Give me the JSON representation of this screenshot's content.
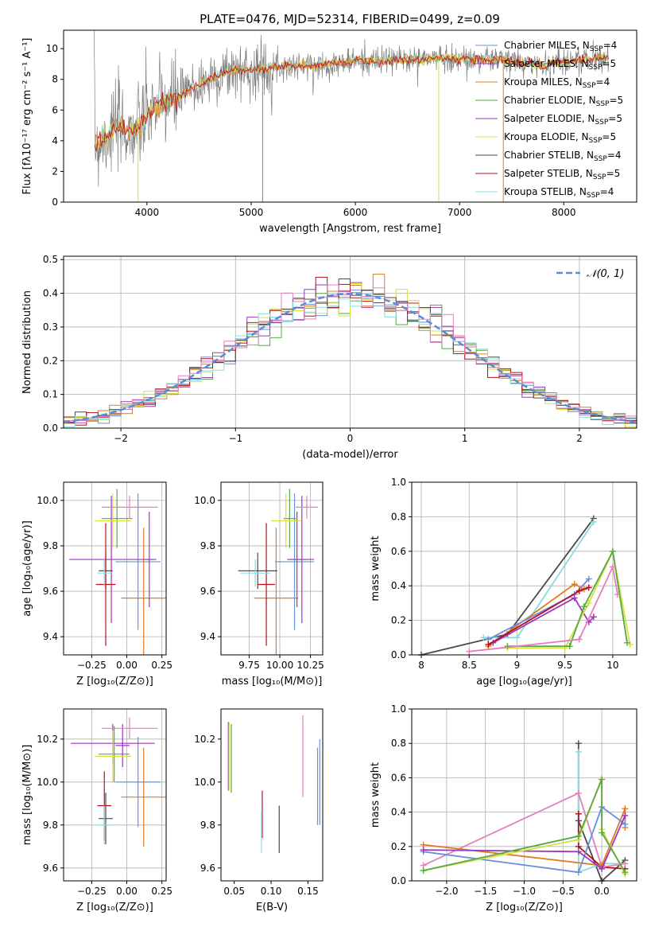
{
  "figure": {
    "title": "PLATE=0476, MJD=52314, FIBERID=0499, z=0.09"
  },
  "colors": {
    "Chabrier MILES": "#6a8fdb",
    "Salpeter MILES": "#9b37b9",
    "Kroupa MILES": "#e07b22",
    "Chabrier ELODIE": "#56a846",
    "Salpeter ELODIE": "#9b37b9",
    "Kroupa ELODIE": "#d8df3c",
    "Chabrier STELIB": "#4a4a4a",
    "Salpeter STELIB": "#b4101e",
    "Kroupa STELIB": "#86dde0",
    "data": "#808080",
    "normal": "#5b8bd8",
    "pink": "#e57fbc"
  },
  "chart_data": [
    {
      "type": "line",
      "name": "spectrum",
      "xlabel": "wavelength [Angstrom, rest frame]",
      "ylabel": "Flux [fλ10⁻¹⁷ erg cm⁻² s⁻¹ A⁻¹]",
      "xlim": [
        3200,
        8700
      ],
      "ylim": [
        0,
        11.2
      ],
      "xticks": [
        4000,
        5000,
        6000,
        7000,
        8000
      ],
      "yticks": [
        0,
        2,
        4,
        6,
        8,
        10
      ],
      "grid": false,
      "legend_position": "upper-right",
      "legend": [
        {
          "label": "Chabrier MILES, N",
          "sub": "SSP",
          "tail": "=4",
          "color": "#6a8fdb"
        },
        {
          "label": "Salpeter MILES, N",
          "sub": "SSP",
          "tail": "=5",
          "color": "#9b37b9"
        },
        {
          "label": "Kroupa MILES, N",
          "sub": "SSP",
          "tail": "=4",
          "color": "#e07b22"
        },
        {
          "label": "Chabrier ELODIE, N",
          "sub": "SSP",
          "tail": "=5",
          "color": "#56a846"
        },
        {
          "label": "Salpeter ELODIE, N",
          "sub": "SSP",
          "tail": "=5",
          "color": "#9b37b9"
        },
        {
          "label": "Kroupa ELODIE, N",
          "sub": "SSP",
          "tail": "=5",
          "color": "#d8df3c"
        },
        {
          "label": "Chabrier STELIB, N",
          "sub": "SSP",
          "tail": "=4",
          "color": "#4a4a4a"
        },
        {
          "label": "Salpeter STELIB, N",
          "sub": "SSP",
          "tail": "=5",
          "color": "#b4101e"
        },
        {
          "label": "Kroupa STELIB, N",
          "sub": "SSP",
          "tail": "=4",
          "color": "#86dde0"
        }
      ],
      "continuum": [
        [
          3500,
          3.7
        ],
        [
          3600,
          4.2
        ],
        [
          3700,
          4.9
        ],
        [
          3800,
          4.7
        ],
        [
          3900,
          4.6
        ],
        [
          4000,
          5.6
        ],
        [
          4100,
          6.3
        ],
        [
          4200,
          6.6
        ],
        [
          4300,
          6.8
        ],
        [
          4400,
          7.3
        ],
        [
          4500,
          7.6
        ],
        [
          4600,
          8.0
        ],
        [
          4700,
          8.3
        ],
        [
          4800,
          8.5
        ],
        [
          4900,
          8.6
        ],
        [
          5000,
          8.6
        ],
        [
          5200,
          8.8
        ],
        [
          5400,
          8.9
        ],
        [
          5600,
          8.9
        ],
        [
          5800,
          9.0
        ],
        [
          6000,
          9.2
        ],
        [
          6200,
          9.2
        ],
        [
          6400,
          9.3
        ],
        [
          6600,
          9.3
        ],
        [
          6800,
          9.4
        ],
        [
          7000,
          9.3
        ],
        [
          7200,
          9.3
        ],
        [
          7400,
          9.3
        ],
        [
          7600,
          9.1
        ],
        [
          7800,
          8.9
        ],
        [
          8000,
          9.2
        ],
        [
          8200,
          9.3
        ],
        [
          8400,
          9.4
        ]
      ]
    },
    {
      "type": "line",
      "name": "residual-histogram",
      "xlabel": "(data-model)/error",
      "ylabel": "Normed distribution",
      "xlim": [
        -2.5,
        2.5
      ],
      "ylim": [
        0,
        0.51
      ],
      "xticks": [
        -2,
        -1,
        0,
        1,
        2
      ],
      "xticklabels": [
        "−2",
        "−1",
        "0",
        "1",
        "2"
      ],
      "yticks": [
        0.0,
        0.1,
        0.2,
        0.3,
        0.4,
        0.5
      ],
      "grid": true,
      "legend_label": "𝒩(0, 1)",
      "bin_width": 0.1,
      "normal_mean": 0,
      "normal_std": 1
    },
    {
      "type": "scatter",
      "name": "age-vs-metallicity",
      "xlabel": "Z [log₁₀(Z/Z⊙)]",
      "ylabel": "age  [log₁₀(age/yr)]",
      "xlim": [
        -0.45,
        0.28
      ],
      "ylim": [
        9.32,
        10.08
      ],
      "xticks": [
        -0.25,
        0.0,
        0.25
      ],
      "xticklabels": [
        "−0.25",
        "0.00",
        "0.25"
      ],
      "yticks": [
        9.4,
        9.6,
        9.8,
        10.0
      ],
      "grid": true,
      "points": [
        {
          "model": "Chabrier MILES",
          "x": 0.08,
          "xerr": 0.16,
          "y": 9.73,
          "yerr": 0.3
        },
        {
          "model": "Salpeter MILES",
          "x": -0.11,
          "xerr": 0.3,
          "y": 9.74,
          "yerr": 0.28
        },
        {
          "model": "Kroupa MILES",
          "x": 0.12,
          "xerr": 0.16,
          "y": 9.57,
          "yerr": 0.31
        },
        {
          "model": "Chabrier ELODIE",
          "x": -0.07,
          "xerr": 0.11,
          "y": 9.92,
          "yerr": 0.13
        },
        {
          "model": "Salpeter ELODIE",
          "x": 0.16,
          "xerr": 0.05,
          "y": 9.74,
          "yerr": 0.21
        },
        {
          "model": "Kroupa ELODIE",
          "x": -0.1,
          "xerr": 0.13,
          "y": 9.91,
          "yerr": 0.12
        },
        {
          "model": "Chabrier STELIB",
          "x": -0.15,
          "xerr": 0.05,
          "y": 9.69,
          "yerr": 0.08
        },
        {
          "model": "Salpeter STELIB",
          "x": -0.15,
          "xerr": 0.07,
          "y": 9.63,
          "yerr": 0.27
        },
        {
          "model": "Kroupa STELIB",
          "x": -0.16,
          "xerr": 0.05,
          "y": 9.68,
          "yerr": 0.06
        },
        {
          "model": "Pink",
          "x": 0.02,
          "xerr": 0.2,
          "y": 9.97,
          "yerr": 0.05
        }
      ]
    },
    {
      "type": "scatter",
      "name": "age-vs-mass",
      "xlabel": "mass [log₁₀(M/M⊙)]",
      "ylabel": "",
      "xlim": [
        9.52,
        10.35
      ],
      "ylim": [
        9.32,
        10.08
      ],
      "xticks": [
        9.75,
        10.0,
        10.25
      ],
      "xticklabels": [
        "9.75",
        "10.00",
        "10.25"
      ],
      "yticks": [
        9.4,
        9.6,
        9.8,
        10.0
      ],
      "grid": true,
      "points": [
        {
          "model": "Chabrier MILES",
          "x": 10.12,
          "xerr": 0.16,
          "y": 9.73,
          "yerr": 0.3
        },
        {
          "model": "Salpeter MILES",
          "x": 10.18,
          "xerr": 0.1,
          "y": 9.74,
          "yerr": 0.28
        },
        {
          "model": "Kroupa MILES",
          "x": 9.97,
          "xerr": 0.18,
          "y": 9.57,
          "yerr": 0.31
        },
        {
          "model": "Chabrier ELODIE",
          "x": 10.08,
          "xerr": 0.05,
          "y": 9.92,
          "yerr": 0.13
        },
        {
          "model": "Salpeter ELODIE",
          "x": 10.14,
          "xerr": 0.08,
          "y": 9.74,
          "yerr": 0.21
        },
        {
          "model": "Kroupa ELODIE",
          "x": 10.05,
          "xerr": 0.12,
          "y": 9.91,
          "yerr": 0.12
        },
        {
          "model": "Chabrier STELIB",
          "x": 9.82,
          "xerr": 0.16,
          "y": 9.69,
          "yerr": 0.08
        },
        {
          "model": "Salpeter STELIB",
          "x": 9.89,
          "xerr": 0.07,
          "y": 9.63,
          "yerr": 0.27
        },
        {
          "model": "Kroupa STELIB",
          "x": 9.8,
          "xerr": 0.12,
          "y": 9.68,
          "yerr": 0.06
        },
        {
          "model": "Pink",
          "x": 10.22,
          "xerr": 0.09,
          "y": 9.97,
          "yerr": 0.05
        }
      ]
    },
    {
      "type": "line",
      "name": "mass-weight-vs-age",
      "xlabel": "age  [log₁₀(age/yr)]",
      "ylabel": "mass weight",
      "xlim": [
        7.9,
        10.25
      ],
      "ylim": [
        0,
        1.0
      ],
      "xticks": [
        8.0,
        8.5,
        9.0,
        9.5,
        10.0
      ],
      "yticks": [
        0.0,
        0.2,
        0.4,
        0.6,
        0.8,
        1.0
      ],
      "grid": true,
      "series": [
        {
          "model": "Chabrier STELIB",
          "points": [
            [
              8.0,
              0.0
            ],
            [
              8.9,
              0.12
            ],
            [
              9.8,
              0.79
            ]
          ]
        },
        {
          "model": "Kroupa STELIB",
          "points": [
            [
              8.65,
              0.1
            ],
            [
              9.0,
              0.1
            ],
            [
              9.8,
              0.77
            ]
          ]
        },
        {
          "model": "Kroupa MILES",
          "points": [
            [
              8.7,
              0.05
            ],
            [
              9.6,
              0.41
            ],
            [
              9.7,
              0.38
            ]
          ]
        },
        {
          "model": "Chabrier MILES",
          "points": [
            [
              8.7,
              0.09
            ],
            [
              9.6,
              0.35
            ],
            [
              9.75,
              0.44
            ]
          ]
        },
        {
          "model": "Salpeter MILES",
          "points": [
            [
              8.75,
              0.07
            ],
            [
              9.6,
              0.33
            ],
            [
              9.75,
              0.19
            ],
            [
              9.8,
              0.22
            ]
          ]
        },
        {
          "model": "Salpeter STELIB",
          "points": [
            [
              8.7,
              0.06
            ],
            [
              9.65,
              0.37
            ],
            [
              9.75,
              0.39
            ]
          ]
        },
        {
          "model": "Kroupa ELODIE",
          "points": [
            [
              8.9,
              0.04
            ],
            [
              9.5,
              0.04
            ],
            [
              9.75,
              0.3
            ],
            [
              10.0,
              0.6
            ],
            [
              10.18,
              0.06
            ]
          ]
        },
        {
          "model": "Chabrier ELODIE",
          "points": [
            [
              8.9,
              0.05
            ],
            [
              9.55,
              0.05
            ],
            [
              9.7,
              0.28
            ],
            [
              10.0,
              0.6
            ],
            [
              10.15,
              0.07
            ]
          ]
        },
        {
          "model": "Pink",
          "points": [
            [
              8.5,
              0.02
            ],
            [
              9.65,
              0.09
            ],
            [
              10.0,
              0.51
            ],
            [
              10.05,
              0.35
            ]
          ]
        }
      ]
    },
    {
      "type": "scatter",
      "name": "mass-vs-metallicity",
      "xlabel": "Z [log₁₀(Z/Z⊙)]",
      "ylabel": "mass [log₁₀(M/M⊙)]",
      "xlim": [
        -0.45,
        0.28
      ],
      "ylim": [
        9.54,
        10.34
      ],
      "xticks": [
        -0.25,
        0.0,
        0.25
      ],
      "xticklabels": [
        "−0.25",
        "0.00",
        "0.25"
      ],
      "yticks": [
        9.6,
        9.8,
        10.0,
        10.2
      ],
      "grid": true,
      "points": [
        {
          "model": "Chabrier MILES",
          "x": 0.08,
          "xerr": 0.16,
          "y": 10.0,
          "yerr": 0.21
        },
        {
          "model": "Salpeter MILES",
          "x": -0.1,
          "xerr": 0.3,
          "y": 10.18,
          "yerr": 0.09
        },
        {
          "model": "Kroupa MILES",
          "x": 0.12,
          "xerr": 0.16,
          "y": 9.93,
          "yerr": 0.23
        },
        {
          "model": "Chabrier ELODIE",
          "x": -0.09,
          "xerr": 0.11,
          "y": 10.13,
          "yerr": 0.13
        },
        {
          "model": "Salpeter ELODIE",
          "x": -0.03,
          "xerr": 0.05,
          "y": 10.17,
          "yerr": 0.1
        },
        {
          "model": "Kroupa ELODIE",
          "x": -0.1,
          "xerr": 0.13,
          "y": 10.12,
          "yerr": 0.12
        },
        {
          "model": "Chabrier STELIB",
          "x": -0.15,
          "xerr": 0.05,
          "y": 9.83,
          "yerr": 0.12
        },
        {
          "model": "Salpeter STELIB",
          "x": -0.16,
          "xerr": 0.05,
          "y": 9.89,
          "yerr": 0.16
        },
        {
          "model": "Kroupa STELIB",
          "x": -0.16,
          "xerr": 0.05,
          "y": 9.8,
          "yerr": 0.09
        },
        {
          "model": "Pink",
          "x": 0.02,
          "xerr": 0.2,
          "y": 10.25,
          "yerr": 0.05
        }
      ]
    },
    {
      "type": "scatter",
      "name": "mass-vs-extinction",
      "xlabel": "E(B-V)",
      "ylabel": "",
      "xlim": [
        0.032,
        0.17
      ],
      "ylim": [
        9.54,
        10.34
      ],
      "xticks": [
        0.05,
        0.1,
        0.15
      ],
      "xticklabels": [
        "0.05",
        "0.10",
        "0.15"
      ],
      "yticks": [
        9.6,
        9.8,
        10.0,
        10.2
      ],
      "grid": false,
      "points": [
        {
          "model": "Chabrier MILES",
          "x": 0.166,
          "y": 10.0,
          "yerr": 0.2
        },
        {
          "model": "Salpeter MILES",
          "x": 0.042,
          "y": 10.12,
          "yerr": 0.16
        },
        {
          "model": "Kroupa MILES",
          "x": 0.163,
          "y": 9.98,
          "yerr": 0.18
        },
        {
          "model": "Chabrier ELODIE",
          "x": 0.046,
          "y": 10.11,
          "yerr": 0.16
        },
        {
          "model": "Kroupa ELODIE",
          "x": 0.043,
          "y": 10.12,
          "yerr": 0.16
        },
        {
          "model": "Chabrier STELIB",
          "x": 0.111,
          "y": 9.78,
          "yerr": 0.11
        },
        {
          "model": "Salpeter STELIB",
          "x": 0.088,
          "y": 9.85,
          "yerr": 0.11
        },
        {
          "model": "Kroupa STELIB",
          "x": 0.087,
          "y": 9.77,
          "yerr": 0.1
        },
        {
          "model": "Pink",
          "x": 0.143,
          "y": 10.12,
          "yerr": 0.19
        }
      ]
    },
    {
      "type": "line",
      "name": "mass-weight-vs-metallicity",
      "xlabel": "Z [log₁₀(Z/Z⊙)]",
      "ylabel": "mass weight",
      "xlim": [
        -2.45,
        0.45
      ],
      "ylim": [
        0,
        1.0
      ],
      "xticks": [
        -2.0,
        -1.5,
        -1.0,
        -0.5,
        0.0
      ],
      "xticklabels": [
        "−2.0",
        "−1.5",
        "−1.0",
        "−0.5",
        "0.0"
      ],
      "yticks": [
        0.0,
        0.2,
        0.4,
        0.6,
        0.8,
        1.0
      ],
      "grid": true,
      "series": [
        {
          "model": "Chabrier STELIB",
          "points": [
            [
              -0.3,
              0.8
            ],
            [
              -0.3,
              0.35
            ],
            [
              0.0,
              0.0
            ],
            [
              0.3,
              0.12
            ]
          ]
        },
        {
          "model": "Kroupa STELIB",
          "points": [
            [
              -0.3,
              0.75
            ],
            [
              -0.3,
              0.05
            ],
            [
              0.0,
              0.1
            ],
            [
              0.3,
              0.1
            ]
          ]
        },
        {
          "model": "Salpeter STELIB",
          "points": [
            [
              -0.3,
              0.39
            ],
            [
              -0.3,
              0.2
            ],
            [
              0.0,
              0.08
            ],
            [
              0.3,
              0.07
            ]
          ]
        },
        {
          "model": "Pink",
          "points": [
            [
              -2.3,
              0.09
            ],
            [
              -0.3,
              0.51
            ],
            [
              0.0,
              0.08
            ],
            [
              0.3,
              0.1
            ]
          ]
        },
        {
          "model": "Kroupa MILES",
          "points": [
            [
              -2.3,
              0.21
            ],
            [
              0.0,
              0.09
            ],
            [
              0.3,
              0.42
            ],
            [
              0.3,
              0.31
            ]
          ]
        },
        {
          "model": "Chabrier MILES",
          "points": [
            [
              -2.3,
              0.17
            ],
            [
              -0.3,
              0.05
            ],
            [
              0.0,
              0.43
            ],
            [
              0.3,
              0.33
            ]
          ]
        },
        {
          "model": "Salpeter MILES",
          "points": [
            [
              -2.3,
              0.18
            ],
            [
              -0.3,
              0.17
            ],
            [
              0.0,
              0.07
            ],
            [
              0.3,
              0.38
            ]
          ]
        },
        {
          "model": "Kroupa ELODIE",
          "points": [
            [
              -2.3,
              0.06
            ],
            [
              -0.3,
              0.24
            ],
            [
              0.0,
              0.6
            ],
            [
              0.0,
              0.3
            ],
            [
              0.3,
              0.04
            ]
          ]
        },
        {
          "model": "Chabrier ELODIE",
          "points": [
            [
              -2.3,
              0.06
            ],
            [
              -0.3,
              0.26
            ],
            [
              0.0,
              0.59
            ],
            [
              0.0,
              0.28
            ],
            [
              0.3,
              0.05
            ]
          ]
        }
      ]
    }
  ]
}
